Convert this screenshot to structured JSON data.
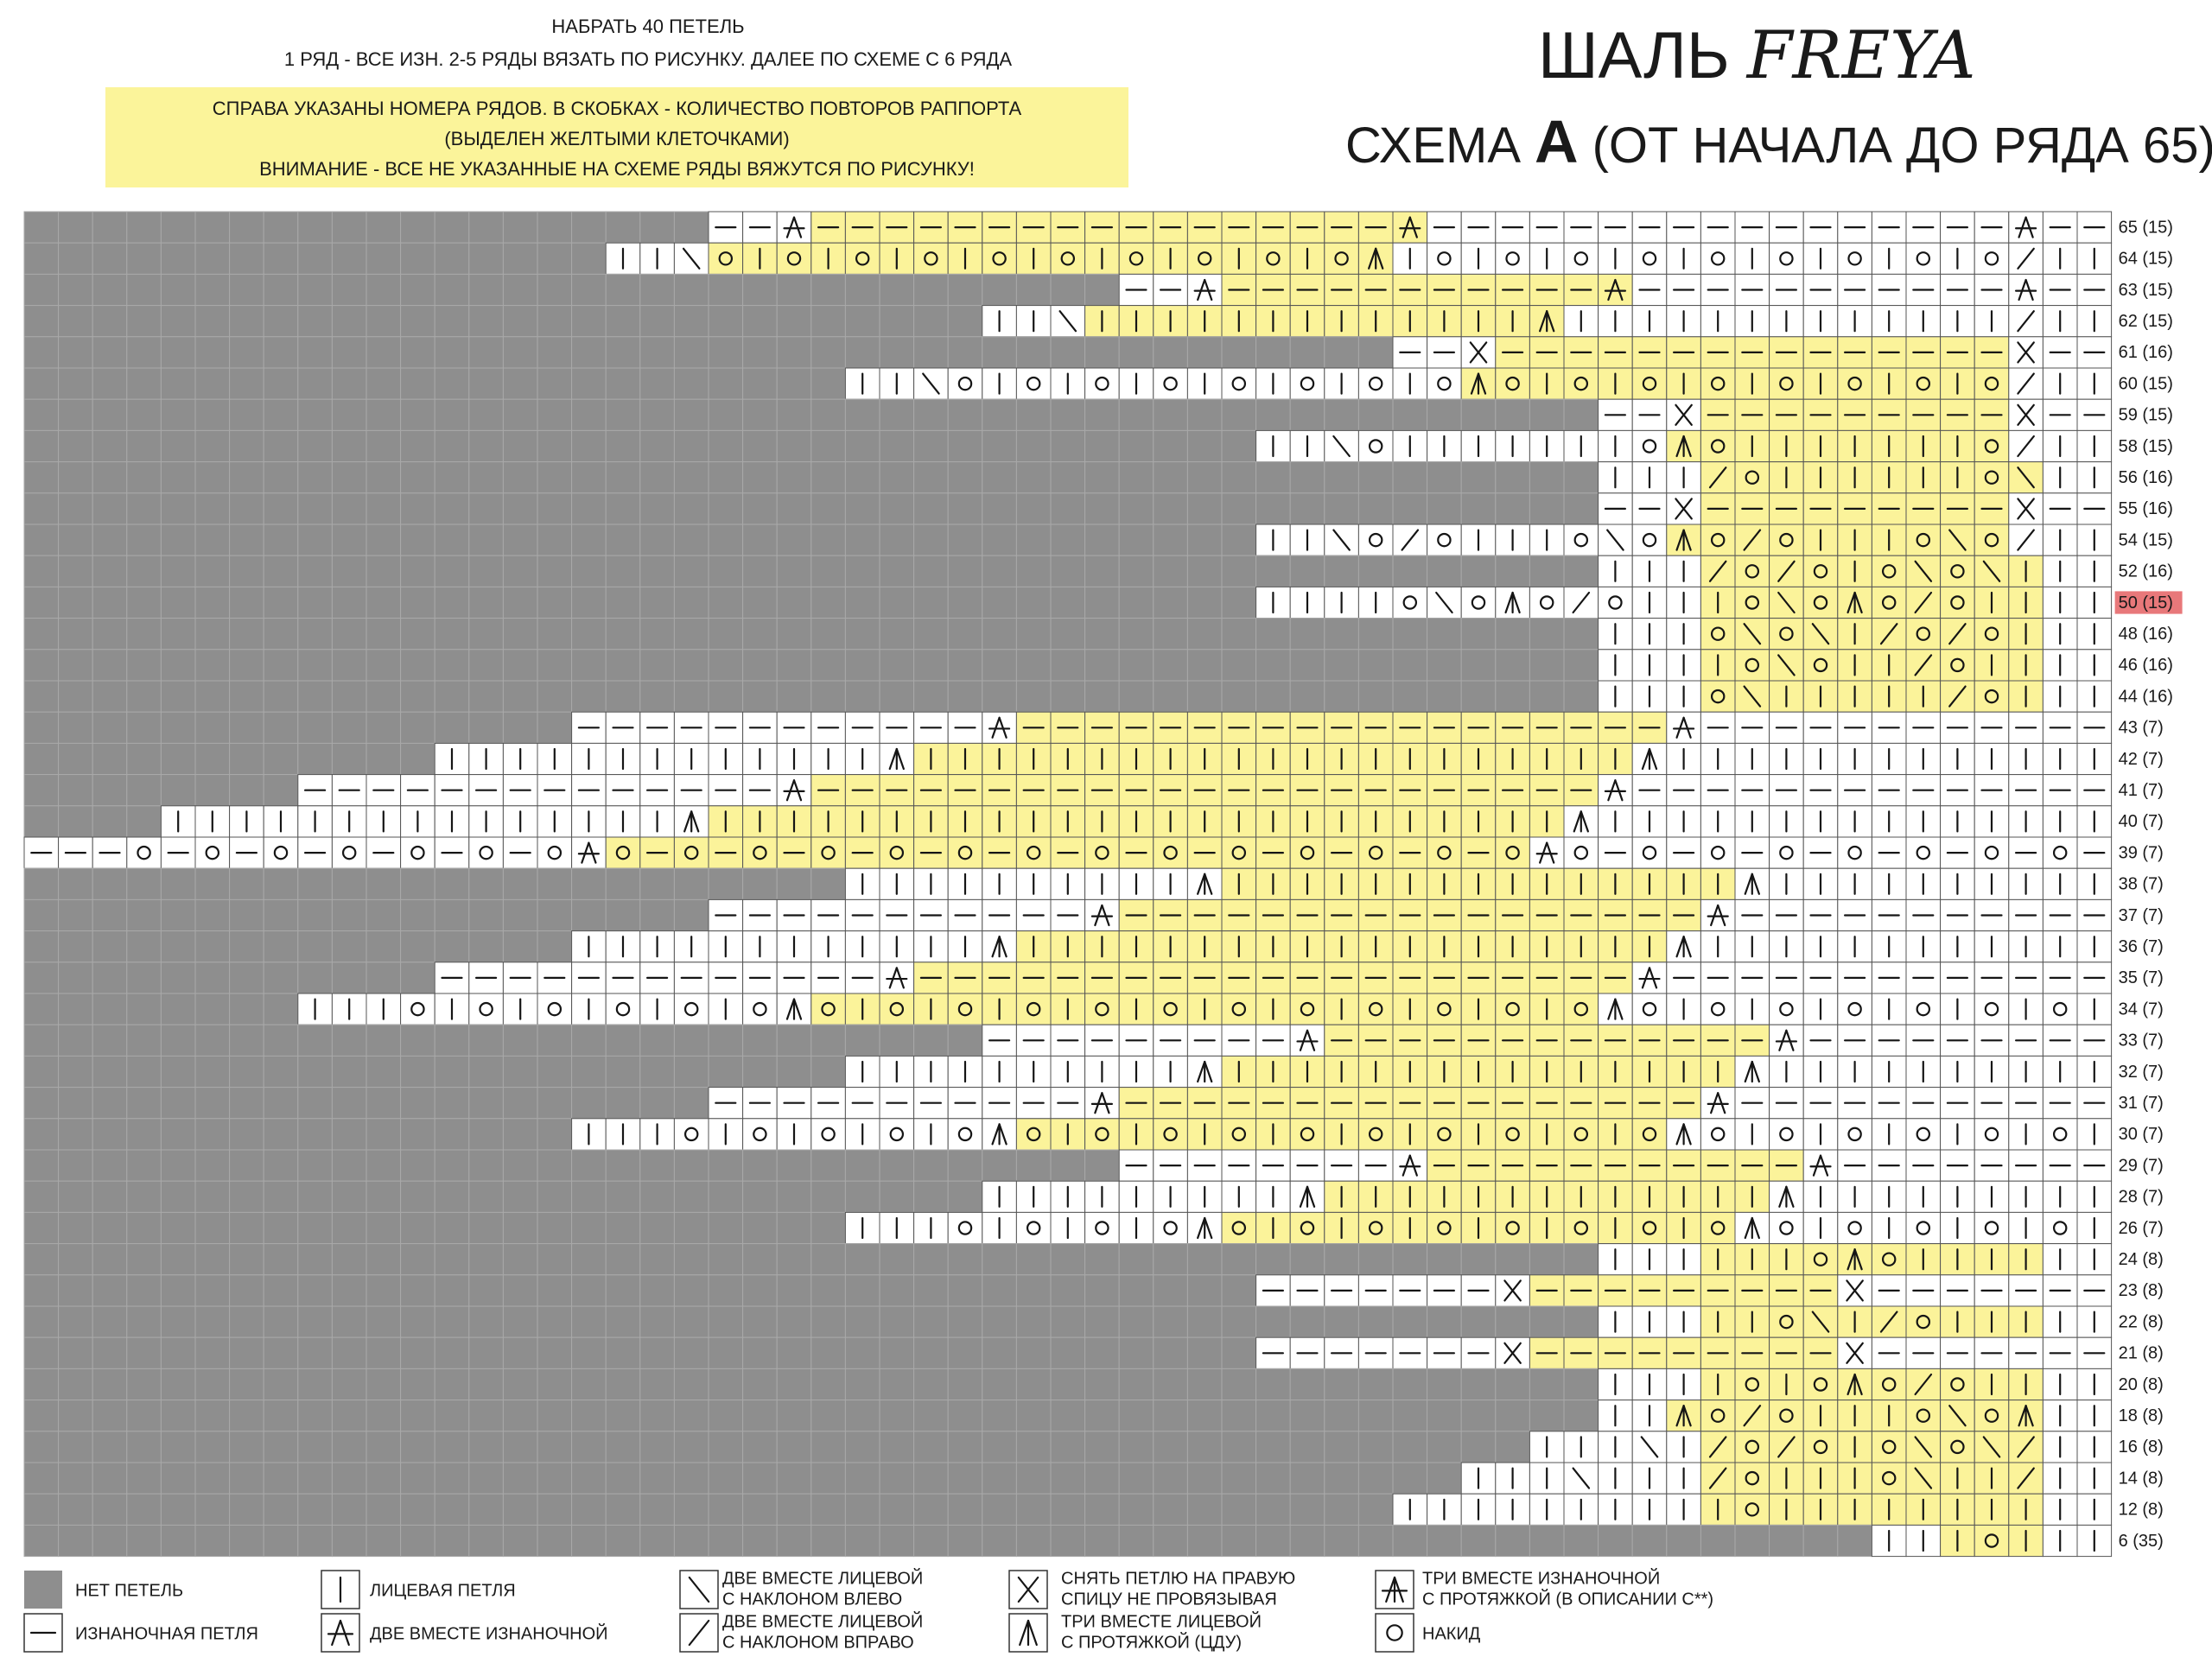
{
  "header": {
    "instructions": [
      "НАБРАТЬ 40 ПЕТЕЛЬ",
      "1 РЯД - ВСЕ ИЗН. 2-5 РЯДЫ ВЯЗАТЬ ПО РИСУНКУ. ДАЛЕЕ ПО СХЕМЕ С 6 РЯДА"
    ],
    "note": [
      "СПРАВА УКАЗАНЫ НОМЕРА РЯДОВ. В СКОБКАХ - КОЛИЧЕСТВО ПОВТОРОВ РАППОРТА",
      "(ВЫДЕЛЕН ЖЕЛТЫМИ КЛЕТОЧКАМИ)",
      "ВНИМАНИЕ - ВСЕ НЕ УКАЗАННЫЕ НА СХЕМЕ РЯДЫ ВЯЖУТСЯ ПО РИСУНКУ!"
    ],
    "title": "ШАЛЬ",
    "title_name": "FREYA",
    "subtitle": [
      "СХЕМА",
      "A",
      "(ОТ НАЧАЛА ДО РЯДА 65)"
    ]
  },
  "chart": {
    "rows": [
      {
        "label": "65 (15)",
        "cells": "--P[-----------------P]-----------------P--"
      },
      {
        "label": "64 (15)",
        "cells": "||L[o|o|o|o|o|o|o|o|o|oA]|o|o|o|o|o|o|o|o|oR||"
      },
      {
        "label": "63 (15)",
        "cells": "--P[-----------P]-----------P--"
      },
      {
        "label": "62 (15)",
        "cells": "||L[|||||||||||||A]|||||||||||||R||"
      },
      {
        "label": "61 (16)",
        "cells": "--x[---------------]x--"
      },
      {
        "label": "60 (15)",
        "cells": "||Lo|o|o|o|o|o|o|o[Ao|o|o|o|o|o|o|o]R||"
      },
      {
        "label": "59 (15)",
        "cells": "--x[---------]x--"
      },
      {
        "label": "58 (15)",
        "cells": "||Lo|||||||o[Ao|||||||o]R||"
      },
      {
        "label": "56 (16)",
        "cells": "|||[Ro||||||oL]||"
      },
      {
        "label": "55 (16)",
        "cells": "--x[---------]x--"
      },
      {
        "label": "54 (15)",
        "cells": "||LoRo|||oLo[AoRo|||oLo]R||"
      },
      {
        "label": "52 (16)",
        "cells": "|||[RoRo|oLoL|]||"
      },
      {
        "label": "50 (15)",
        "cells": "||||oLoAoRo||[|oLoAoRo||]||",
        "marked": true
      },
      {
        "label": "48 (16)",
        "cells": "|||[oLoL|RoRo|]||"
      },
      {
        "label": "46 (16)",
        "cells": "|||[|oLo||Ro||]||"
      },
      {
        "label": "44 (16)",
        "cells": "|||[oL|||||Ro|]||"
      },
      {
        "label": "43 (7)",
        "cells": "------------P[-------------------]P------------"
      },
      {
        "label": "42 (7)",
        "cells": "|||||||||||||A[|||||||||||||||||||||]A|||||||||||||"
      },
      {
        "label": "41 (7)",
        "cells": "--------------P[-----------------------]P--------------"
      },
      {
        "label": "40 (7)",
        "cells": "|||||||||||||||A[|||||||||||||||||||||||||]A|||||||||||||||"
      },
      {
        "label": "39 (7)",
        "cells": "---o-o-o-o-o-o-oP[o-o-o-o-o-o-o-o-o-o-o-o-o-o]Po-o-o-o-o-o-o-o-"
      },
      {
        "label": "38 (7)",
        "cells": "||||||||||A[|||||||||||||||]A||||||||||"
      },
      {
        "label": "37 (7)",
        "cells": "-----------P[-----------------]P-----------"
      },
      {
        "label": "36 (7)",
        "cells": "||||||||||||A[|||||||||||||||||||]A||||||||||||"
      },
      {
        "label": "35 (7)",
        "cells": "-------------P[---------------------]P-------------"
      },
      {
        "label": "34 (7)",
        "cells": "|||o|o|o|o|o|oA[o|o|o|o|o|o|o|o|o|o|o|o]Ao|o|o|o|o|o|o|"
      },
      {
        "label": "33 (7)",
        "cells": "---------P[-------------]P---------"
      },
      {
        "label": "32 (7)",
        "cells": "||||||||||A[|||||||||||||||]A||||||||||"
      },
      {
        "label": "31 (7)",
        "cells": "-----------P[-----------------]P-----------"
      },
      {
        "label": "30 (7)",
        "cells": "|||o|o|o|o|oA[o|o|o|o|o|o|o|o|o|o]Ao|o|o|o|o|o|"
      },
      {
        "label": "29 (7)",
        "cells": "--------P[-----------]P--------"
      },
      {
        "label": "28 (7)",
        "cells": "|||||||||A[|||||||||||||]A|||||||||"
      },
      {
        "label": "26 (7)",
        "cells": "|||o|o|o|oA[o|o|o|o|o|o|o|o]Ao|o|o|o|o|"
      },
      {
        "label": "24 (8)",
        "cells": "|||[|||oAo||||]||"
      },
      {
        "label": "23 (8)",
        "cells": "-------x[---------]x-------"
      },
      {
        "label": "22 (8)",
        "cells": "|||[||oL|Ro|||]||"
      },
      {
        "label": "21 (8)",
        "cells": "-------x[---------]x-------"
      },
      {
        "label": "20 (8)",
        "cells": "|||[|o|oAoRo||]||"
      },
      {
        "label": "18 (8)",
        "cells": "||[AoRo|||oLoA]||"
      },
      {
        "label": "16 (8)",
        "cells": "|||L|[RoRo|oLoLR]||"
      },
      {
        "label": "14 (8)",
        "cells": "|||L|||[Ro|||oL||R]||"
      },
      {
        "label": "12 (8)",
        "cells": "|||||||||[|o||||||||]||"
      },
      {
        "label": "6 (35)",
        "cells": "||[|o|]||"
      }
    ]
  },
  "legend": [
    {
      "symbol": ".",
      "lines": [
        "НЕТ ПЕТЕЛЬ"
      ]
    },
    {
      "symbol": "-",
      "lines": [
        "ИЗНАНОЧНАЯ ПЕТЛЯ"
      ]
    },
    {
      "symbol": "|",
      "lines": [
        "ЛИЦЕВАЯ ПЕТЛЯ"
      ]
    },
    {
      "symbol": "P",
      "lines": [
        "ДВЕ ВМЕСТЕ ИЗНАНОЧНОЙ"
      ]
    },
    {
      "symbol": "L",
      "lines": [
        "ДВЕ ВМЕСТЕ ЛИЦЕВОЙ",
        "С НАКЛОНОМ ВЛЕВО"
      ]
    },
    {
      "symbol": "R",
      "lines": [
        "ДВЕ ВМЕСТЕ ЛИЦЕВОЙ",
        "С НАКЛОНОМ ВПРАВО"
      ]
    },
    {
      "symbol": "x",
      "lines": [
        "СНЯТЬ ПЕТЛЮ НА ПРАВУЮ",
        "СПИЦУ НЕ ПРОВЯЗЫВАЯ"
      ]
    },
    {
      "symbol": "A",
      "lines": [
        "ТРИ ВМЕСТЕ ЛИЦЕВОЙ",
        "С ПРОТЯЖКОЙ (ЦДУ)"
      ]
    },
    {
      "symbol": "M",
      "lines": [
        "ТРИ ВМЕСТЕ ИЗНАНОЧНОЙ",
        "С ПРОТЯЖКОЙ (В ОПИСАНИИ С**)"
      ]
    },
    {
      "symbol": "o",
      "lines": [
        "НАКИД"
      ]
    }
  ]
}
